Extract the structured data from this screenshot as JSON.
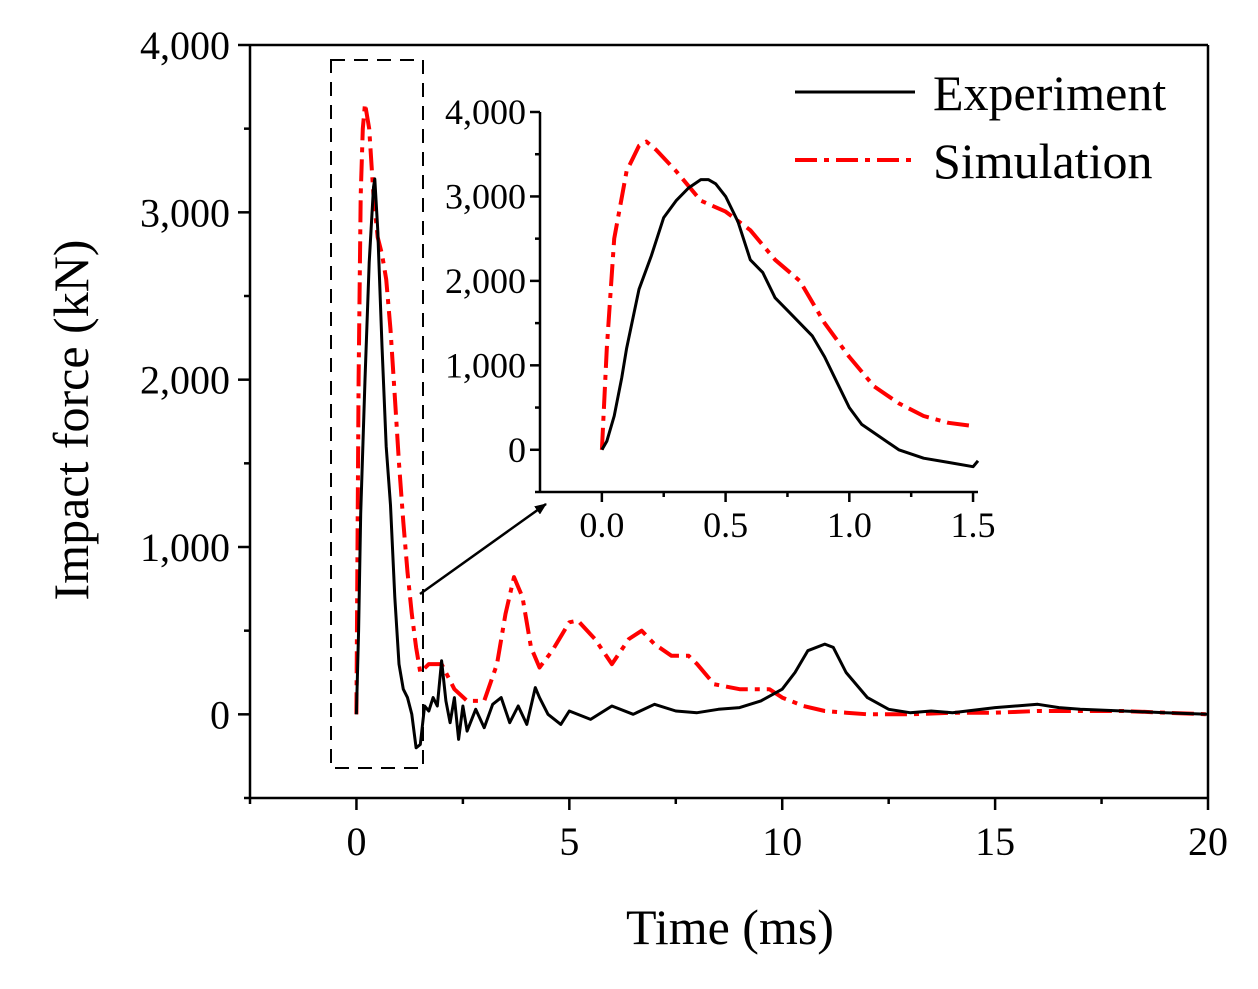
{
  "chart_data": [
    {
      "type": "line",
      "xlabel": "Time (ms)",
      "ylabel": "Impact force (kN)",
      "xlim": [
        -2.5,
        20
      ],
      "ylim": [
        -500,
        4000
      ],
      "xticks": [
        0,
        5,
        10,
        15,
        20
      ],
      "xtick_labels": [
        "0",
        "5",
        "10",
        "15",
        "20"
      ],
      "yticks": [
        0,
        1000,
        2000,
        3000,
        4000
      ],
      "ytick_labels": [
        "0",
        "1,000",
        "2,000",
        "3,000",
        "4,000"
      ],
      "grid": false,
      "legend_position": "top-right",
      "colors": {
        "experiment": "#000000",
        "simulation": "#ff0000"
      },
      "series": [
        {
          "name": "Experiment",
          "style": "solid",
          "x": [
            0,
            0.05,
            0.1,
            0.2,
            0.3,
            0.4,
            0.43,
            0.5,
            0.6,
            0.7,
            0.8,
            0.9,
            1.0,
            1.1,
            1.2,
            1.3,
            1.4,
            1.5,
            1.6,
            1.7,
            1.8,
            1.9,
            2.0,
            2.1,
            2.2,
            2.3,
            2.4,
            2.5,
            2.6,
            2.8,
            3.0,
            3.2,
            3.4,
            3.6,
            3.8,
            4.0,
            4.2,
            4.3,
            4.5,
            4.8,
            5.0,
            5.5,
            6.0,
            6.5,
            7.0,
            7.5,
            8.0,
            8.5,
            9.0,
            9.5,
            10.0,
            10.3,
            10.6,
            11.0,
            11.2,
            11.5,
            12.0,
            12.5,
            13.0,
            13.5,
            14.0,
            15.0,
            16.0,
            16.5,
            17.0,
            18.0,
            19.0,
            20.0
          ],
          "y": [
            0,
            500,
            1200,
            2000,
            2700,
            3150,
            3200,
            2900,
            2200,
            1600,
            1250,
            700,
            300,
            150,
            100,
            0,
            -200,
            -180,
            50,
            20,
            100,
            50,
            320,
            80,
            -50,
            100,
            -150,
            50,
            -100,
            30,
            -80,
            60,
            100,
            -50,
            50,
            -60,
            160,
            100,
            0,
            -60,
            20,
            -30,
            50,
            0,
            60,
            20,
            10,
            30,
            40,
            80,
            150,
            250,
            380,
            420,
            400,
            250,
            100,
            30,
            10,
            20,
            10,
            40,
            60,
            40,
            30,
            20,
            10,
            0
          ]
        },
        {
          "name": "Simulation",
          "style": "dash-dot",
          "x": [
            0,
            0.05,
            0.1,
            0.15,
            0.2,
            0.3,
            0.4,
            0.5,
            0.6,
            0.7,
            0.8,
            0.9,
            1.0,
            1.1,
            1.2,
            1.3,
            1.4,
            1.5,
            1.7,
            2.0,
            2.3,
            2.6,
            3.0,
            3.3,
            3.5,
            3.7,
            3.9,
            4.1,
            4.3,
            4.6,
            5.0,
            5.2,
            5.6,
            6.0,
            6.4,
            6.7,
            7.0,
            7.4,
            7.8,
            8.0,
            8.4,
            9.0,
            9.7,
            10.0,
            10.5,
            11.0,
            11.5,
            12.0,
            13.0,
            14.0,
            15.0,
            16.0,
            17.0,
            18.0,
            19.0,
            20.0
          ],
          "y": [
            0,
            2000,
            3100,
            3500,
            3650,
            3500,
            3100,
            2850,
            2750,
            2600,
            2300,
            1900,
            1500,
            1150,
            850,
            600,
            400,
            250,
            300,
            300,
            150,
            80,
            80,
            300,
            600,
            820,
            700,
            400,
            280,
            380,
            550,
            560,
            450,
            300,
            450,
            500,
            420,
            350,
            350,
            300,
            180,
            150,
            150,
            100,
            50,
            20,
            10,
            0,
            0,
            10,
            10,
            20,
            20,
            20,
            10,
            0
          ]
        }
      ]
    },
    {
      "type": "line",
      "position": "inset",
      "xlim": [
        -0.25,
        1.52
      ],
      "ylim": [
        -500,
        4000
      ],
      "xticks": [
        0,
        0.5,
        1.0,
        1.5
      ],
      "xtick_labels": [
        "0.0",
        "0.5",
        "1.0",
        "1.5"
      ],
      "yticks": [
        0,
        1000,
        2000,
        3000,
        4000
      ],
      "ytick_labels": [
        "0",
        "1,000",
        "2,000",
        "3,000",
        "4,000"
      ],
      "grid": false,
      "series": [
        {
          "name": "Experiment",
          "style": "solid",
          "x": [
            0,
            0.02,
            0.05,
            0.08,
            0.1,
            0.15,
            0.2,
            0.25,
            0.3,
            0.35,
            0.4,
            0.43,
            0.46,
            0.5,
            0.55,
            0.6,
            0.65,
            0.7,
            0.75,
            0.8,
            0.85,
            0.9,
            0.95,
            1.0,
            1.05,
            1.1,
            1.2,
            1.3,
            1.4,
            1.5,
            1.52
          ],
          "y": [
            0,
            100,
            400,
            850,
            1200,
            1900,
            2300,
            2750,
            2950,
            3100,
            3200,
            3200,
            3150,
            3000,
            2700,
            2250,
            2100,
            1800,
            1650,
            1500,
            1350,
            1100,
            800,
            500,
            300,
            200,
            0,
            -100,
            -150,
            -200,
            -130
          ]
        },
        {
          "name": "Simulation",
          "style": "dash-dot",
          "x": [
            0,
            0.02,
            0.05,
            0.1,
            0.15,
            0.18,
            0.22,
            0.3,
            0.4,
            0.5,
            0.6,
            0.7,
            0.8,
            0.9,
            1.0,
            1.1,
            1.2,
            1.3,
            1.4,
            1.5
          ],
          "y": [
            0,
            1200,
            2500,
            3300,
            3600,
            3650,
            3550,
            3300,
            2950,
            2820,
            2600,
            2250,
            2000,
            1500,
            1100,
            750,
            550,
            400,
            320,
            280
          ]
        }
      ]
    }
  ]
}
